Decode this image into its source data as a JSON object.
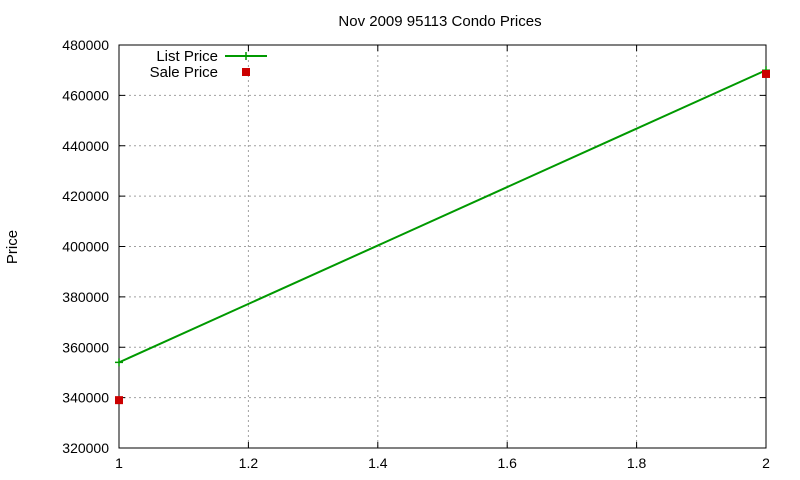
{
  "chart_data": {
    "type": "line",
    "title": "Nov 2009 95113 Condo Prices",
    "xlabel": "",
    "ylabel": "Price",
    "xlim": [
      1,
      2
    ],
    "ylim": [
      320000,
      480000
    ],
    "x_ticks": [
      "1",
      "1.2",
      "1.4",
      "1.6",
      "1.8",
      "2"
    ],
    "y_ticks": [
      "320000",
      "340000",
      "360000",
      "380000",
      "400000",
      "420000",
      "440000",
      "460000",
      "480000"
    ],
    "grid": true,
    "legend_position": "top-left",
    "series": [
      {
        "name": "List Price",
        "kind": "line",
        "marker": "plus",
        "color": "#009900",
        "points": [
          {
            "x": 1,
            "y": 354000
          },
          {
            "x": 2,
            "y": 470000
          }
        ]
      },
      {
        "name": "Sale Price",
        "kind": "scatter",
        "marker": "square",
        "color": "#cc0000",
        "points": [
          {
            "x": 1,
            "y": 339000
          },
          {
            "x": 2,
            "y": 468500
          }
        ]
      }
    ]
  }
}
